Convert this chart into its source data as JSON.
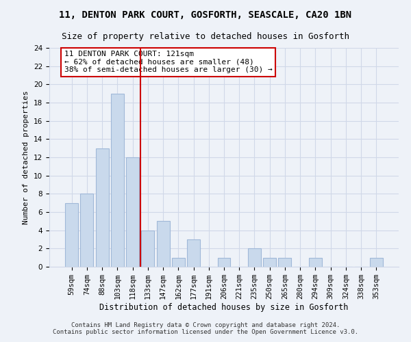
{
  "title1": "11, DENTON PARK COURT, GOSFORTH, SEASCALE, CA20 1BN",
  "title2": "Size of property relative to detached houses in Gosforth",
  "xlabel": "Distribution of detached houses by size in Gosforth",
  "ylabel": "Number of detached properties",
  "categories": [
    "59sqm",
    "74sqm",
    "88sqm",
    "103sqm",
    "118sqm",
    "133sqm",
    "147sqm",
    "162sqm",
    "177sqm",
    "191sqm",
    "206sqm",
    "221sqm",
    "235sqm",
    "250sqm",
    "265sqm",
    "280sqm",
    "294sqm",
    "309sqm",
    "324sqm",
    "338sqm",
    "353sqm"
  ],
  "values": [
    7,
    8,
    13,
    19,
    12,
    4,
    5,
    1,
    3,
    0,
    1,
    0,
    2,
    1,
    1,
    0,
    1,
    0,
    0,
    0,
    1
  ],
  "bar_color": "#c9d9ec",
  "bar_edge_color": "#a0b8d8",
  "grid_color": "#d0d8e8",
  "background_color": "#eef2f8",
  "annotation_line1": "11 DENTON PARK COURT: 121sqm",
  "annotation_line2": "← 62% of detached houses are smaller (48)",
  "annotation_line3": "38% of semi-detached houses are larger (30) →",
  "annotation_box_color": "#ffffff",
  "annotation_box_edge_color": "#cc0000",
  "vline_x": 4.5,
  "vline_color": "#cc0000",
  "ylim": [
    0,
    24
  ],
  "yticks": [
    0,
    2,
    4,
    6,
    8,
    10,
    12,
    14,
    16,
    18,
    20,
    22,
    24
  ],
  "footnote": "Contains HM Land Registry data © Crown copyright and database right 2024.\nContains public sector information licensed under the Open Government Licence v3.0.",
  "title1_fontsize": 10,
  "title2_fontsize": 9,
  "ylabel_fontsize": 8,
  "xlabel_fontsize": 8.5,
  "tick_fontsize": 7.5,
  "annot_fontsize": 8,
  "footnote_fontsize": 6.5
}
